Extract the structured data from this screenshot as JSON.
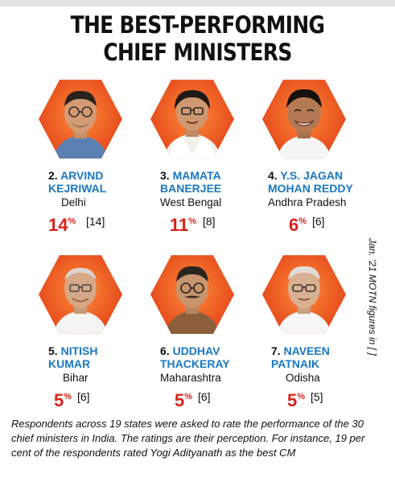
{
  "title_line1": "THE BEST-PERFORMING",
  "title_line2": "CHIEF MINISTERS",
  "side_note": "Jan. '21 MOTN figures in [ ]",
  "footer": "Respondents across 19 states were asked to rate the performance of the 30 chief ministers in India. The ratings are their perception. For instance, 19 per cent of the respondents rated Yogi Adityanath as the best CM",
  "colors": {
    "orange": "#e9541f",
    "name_blue": "#1a78c2",
    "pct_red": "#d8231b"
  },
  "ministers": [
    {
      "num": "2.",
      "name1": "ARVIND",
      "name2": "KEJRIWAL",
      "state": "Delhi",
      "pct": "14",
      "prev": "[14]",
      "portrait": "man-glasses-icon"
    },
    {
      "num": "3.",
      "name1": "MAMATA",
      "name2": "BANERJEE",
      "state": "West Bengal",
      "pct": "11",
      "prev": "[8]",
      "portrait": "woman-glasses-icon"
    },
    {
      "num": "4.",
      "name1": "Y.S. JAGAN",
      "name2": "MOHAN REDDY",
      "state": "Andhra Pradesh",
      "pct": "6",
      "prev": "[6]",
      "portrait": "man-smiling-icon"
    },
    {
      "num": "5.",
      "name1": "NITISH",
      "name2": "KUMAR",
      "state": "Bihar",
      "pct": "5",
      "prev": "[6]",
      "portrait": "man-glasses-icon"
    },
    {
      "num": "6.",
      "name1": "UDDHAV",
      "name2": "THACKERAY",
      "state": "Maharashtra",
      "pct": "5",
      "prev": "[6]",
      "portrait": "man-glasses-icon"
    },
    {
      "num": "7.",
      "name1": "NAVEEN",
      "name2": "PATNAIK",
      "state": "Odisha",
      "pct": "5",
      "prev": "[5]",
      "portrait": "man-glasses-icon"
    }
  ]
}
